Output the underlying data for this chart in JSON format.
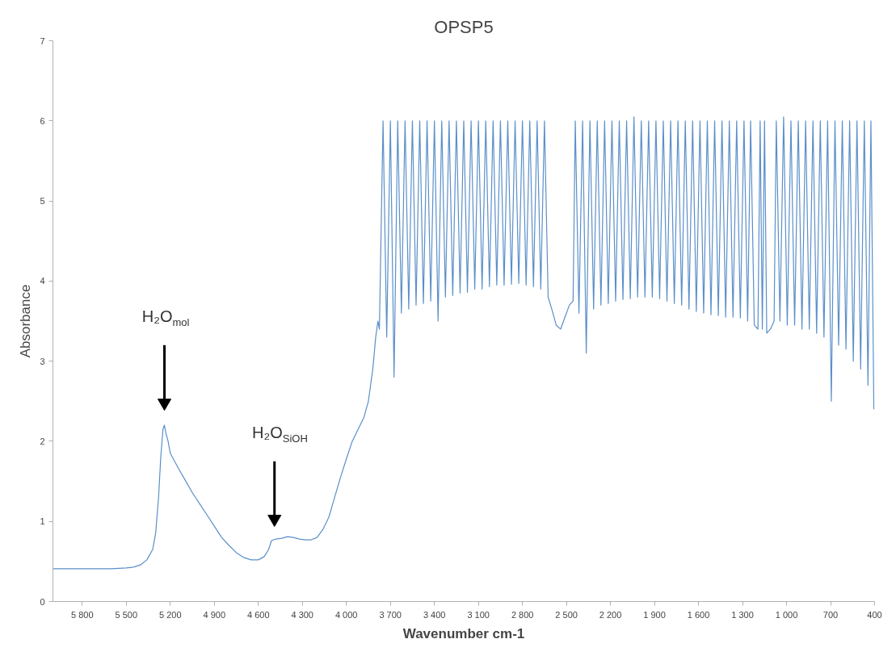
{
  "chart_data": {
    "type": "line",
    "title": "OPSP5",
    "xlabel": "Wavenumber cm-1",
    "ylabel": "Absorbance",
    "xlim": [
      6000,
      400
    ],
    "ylim": [
      0,
      7
    ],
    "xticks": [
      {
        "value": 5800,
        "label": "5 800"
      },
      {
        "value": 5500,
        "label": "5 500"
      },
      {
        "value": 5200,
        "label": "5 200"
      },
      {
        "value": 4900,
        "label": "4 900"
      },
      {
        "value": 4600,
        "label": "4 600"
      },
      {
        "value": 4300,
        "label": "4 300"
      },
      {
        "value": 4000,
        "label": "4 000"
      },
      {
        "value": 3700,
        "label": "3 700"
      },
      {
        "value": 3400,
        "label": "3 400"
      },
      {
        "value": 3100,
        "label": "3 100"
      },
      {
        "value": 2800,
        "label": "2 800"
      },
      {
        "value": 2500,
        "label": "2 500"
      },
      {
        "value": 2200,
        "label": "2 200"
      },
      {
        "value": 1900,
        "label": "1 900"
      },
      {
        "value": 1600,
        "label": "1 600"
      },
      {
        "value": 1300,
        "label": "1 300"
      },
      {
        "value": 1000,
        "label": "1 000"
      },
      700,
      400
    ],
    "yticks": [
      0,
      1,
      2,
      3,
      4,
      5,
      6,
      7
    ],
    "grid": false,
    "marker": "none",
    "line_style": "solid",
    "annotations": [
      "H₂O$_{mol}$",
      "H₂O$_{SiOH}$"
    ],
    "series": [
      {
        "color": "#5b8fc9",
        "x": [
          6000,
          5800,
          5600,
          5500,
          5450,
          5400,
          5360,
          5320,
          5300,
          5280,
          5265,
          5250,
          5240,
          5230,
          5215,
          5200,
          5150,
          5100,
          5050,
          5000,
          4950,
          4900,
          4850,
          4800,
          4750,
          4700,
          4650,
          4600,
          4560,
          4530,
          4510,
          4480,
          4440,
          4400,
          4360,
          4320,
          4280,
          4240,
          4200,
          4160,
          4120,
          4080,
          4040,
          4000,
          3960,
          3920,
          3880,
          3850,
          3820,
          3800,
          3785,
          3775,
          3750,
          3725,
          3700,
          3675,
          3650,
          3625,
          3600,
          3575,
          3550,
          3525,
          3500,
          3475,
          3450,
          3425,
          3400,
          3375,
          3350,
          3325,
          3300,
          3275,
          3250,
          3225,
          3200,
          3175,
          3150,
          3125,
          3100,
          3075,
          3050,
          3025,
          3000,
          2975,
          2950,
          2925,
          2900,
          2875,
          2850,
          2825,
          2800,
          2775,
          2750,
          2725,
          2700,
          2675,
          2650,
          2625,
          2600,
          2570,
          2540,
          2510,
          2480,
          2455,
          2440,
          2415,
          2390,
          2365,
          2340,
          2315,
          2290,
          2265,
          2240,
          2215,
          2190,
          2165,
          2140,
          2115,
          2090,
          2065,
          2040,
          2015,
          1990,
          1965,
          1940,
          1915,
          1890,
          1865,
          1840,
          1815,
          1790,
          1765,
          1740,
          1715,
          1690,
          1665,
          1640,
          1615,
          1590,
          1565,
          1540,
          1515,
          1490,
          1465,
          1440,
          1415,
          1390,
          1365,
          1340,
          1315,
          1290,
          1265,
          1245,
          1220,
          1195,
          1180,
          1165,
          1150,
          1135,
          1110,
          1085,
          1070,
          1045,
          1020,
          995,
          970,
          945,
          920,
          895,
          870,
          845,
          820,
          795,
          770,
          745,
          720,
          695,
          670,
          645,
          620,
          595,
          570,
          545,
          520,
          495,
          470,
          445,
          425,
          405
        ],
        "values": [
          0.41,
          0.41,
          0.41,
          0.42,
          0.43,
          0.46,
          0.52,
          0.65,
          0.85,
          1.3,
          1.8,
          2.15,
          2.2,
          2.1,
          2.0,
          1.85,
          1.68,
          1.52,
          1.36,
          1.22,
          1.08,
          0.94,
          0.8,
          0.7,
          0.61,
          0.55,
          0.52,
          0.52,
          0.56,
          0.65,
          0.76,
          0.78,
          0.79,
          0.81,
          0.8,
          0.78,
          0.77,
          0.77,
          0.8,
          0.9,
          1.05,
          1.3,
          1.55,
          1.78,
          2.0,
          2.15,
          2.3,
          2.5,
          2.9,
          3.3,
          3.5,
          3.4,
          6.0,
          3.3,
          6.0,
          2.8,
          6.0,
          3.6,
          6.0,
          3.65,
          6.0,
          3.7,
          6.0,
          3.72,
          6.0,
          3.75,
          6.0,
          3.5,
          6.0,
          3.8,
          6.0,
          3.82,
          6.0,
          3.85,
          6.0,
          3.86,
          6.0,
          3.9,
          6.0,
          3.9,
          6.0,
          3.93,
          6.0,
          3.95,
          6.0,
          3.95,
          6.0,
          3.96,
          6.0,
          3.97,
          6.0,
          3.95,
          6.0,
          3.93,
          6.0,
          3.9,
          6.0,
          3.8,
          3.65,
          3.45,
          3.4,
          3.55,
          3.7,
          3.75,
          6.0,
          3.6,
          6.0,
          3.1,
          6.0,
          3.65,
          6.0,
          3.7,
          6.0,
          3.72,
          6.0,
          3.75,
          6.0,
          3.77,
          6.0,
          3.78,
          6.05,
          3.8,
          6.0,
          3.8,
          6.0,
          3.8,
          6.0,
          3.78,
          6.0,
          3.75,
          6.0,
          3.72,
          6.0,
          3.7,
          6.0,
          3.65,
          6.0,
          3.62,
          6.0,
          3.6,
          6.0,
          3.58,
          6.0,
          3.57,
          6.0,
          3.55,
          6.0,
          3.55,
          6.0,
          3.54,
          6.0,
          3.5,
          6.0,
          3.45,
          3.4,
          6.0,
          3.4,
          6.0,
          3.35,
          3.4,
          3.5,
          6.0,
          3.5,
          6.05,
          3.45,
          6.0,
          3.45,
          6.0,
          3.4,
          6.0,
          3.4,
          6.0,
          3.35,
          6.0,
          3.3,
          6.0,
          2.5,
          6.0,
          3.2,
          6.0,
          3.15,
          6.0,
          3.0,
          6.0,
          2.9,
          6.0,
          2.7,
          6.0,
          2.4
        ]
      }
    ]
  }
}
